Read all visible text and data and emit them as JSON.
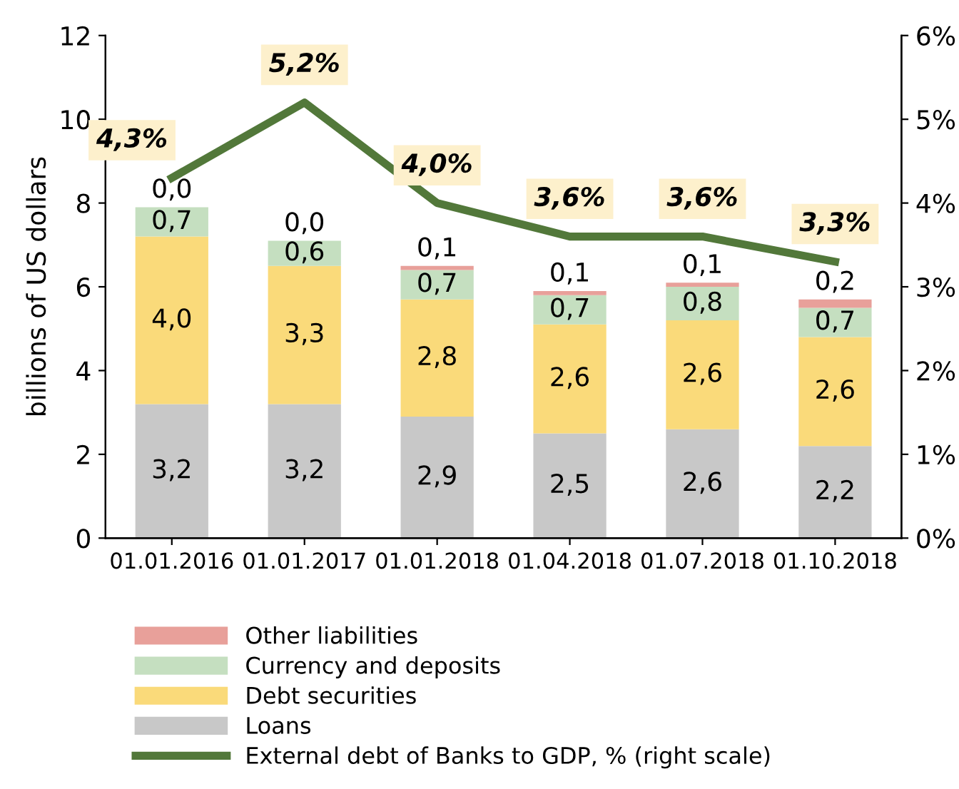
{
  "chart_data": {
    "type": "bar",
    "stacked": true,
    "ylabel": "billions of US dollars",
    "categories": [
      "01.01.2016",
      "01.01.2017",
      "01.01.2018",
      "01.04.2018",
      "01.07.2018",
      "01.10.2018"
    ],
    "series": [
      {
        "name": "Loans",
        "color": "#c8c8c8",
        "values": [
          3.2,
          3.2,
          2.9,
          2.5,
          2.6,
          2.2
        ],
        "value_labels": [
          "3,2",
          "3,2",
          "2,9",
          "2,5",
          "2,6",
          "2,2"
        ]
      },
      {
        "name": "Debt securities",
        "color": "#fada7a",
        "values": [
          4.0,
          3.3,
          2.8,
          2.6,
          2.6,
          2.6
        ],
        "value_labels": [
          "4,0",
          "3,3",
          "2,8",
          "2,6",
          "2,6",
          "2,6"
        ]
      },
      {
        "name": "Currency and deposits",
        "color": "#c5dfc0",
        "values": [
          0.7,
          0.6,
          0.7,
          0.7,
          0.8,
          0.7
        ],
        "value_labels": [
          "0,7",
          "0,6",
          "0,7",
          "0,7",
          "0,8",
          "0,7"
        ]
      },
      {
        "name": "Other liabilities",
        "color": "#e8a09a",
        "values": [
          0.0,
          0.0,
          0.1,
          0.1,
          0.1,
          0.2
        ],
        "value_labels": [
          "0,0",
          "0,0",
          "0,1",
          "0,1",
          "0,1",
          "0,2"
        ]
      },
      {
        "name": "External debt of Banks to GDP, % (right scale)",
        "type": "line",
        "axis": "y2",
        "color": "#52783a",
        "values": [
          4.3,
          5.2,
          4.0,
          3.6,
          3.6,
          3.3
        ],
        "value_labels": [
          "4,3%",
          "5,2%",
          "4,0%",
          "3,6%",
          "3,6%",
          "3,3%"
        ]
      }
    ],
    "ylim": [
      0,
      12
    ],
    "yticks": [
      0,
      2,
      4,
      6,
      8,
      10,
      12
    ],
    "y2lim": [
      0,
      6
    ],
    "y2ticks": [
      {
        "value": 0,
        "label": "0%"
      },
      {
        "value": 1,
        "label": "1%"
      },
      {
        "value": 2,
        "label": "2%"
      },
      {
        "value": 3,
        "label": "3%"
      },
      {
        "value": 4,
        "label": "4%"
      },
      {
        "value": 5,
        "label": "5%"
      },
      {
        "value": 6,
        "label": "6%"
      }
    ],
    "legend": "bottom",
    "grid": false
  }
}
